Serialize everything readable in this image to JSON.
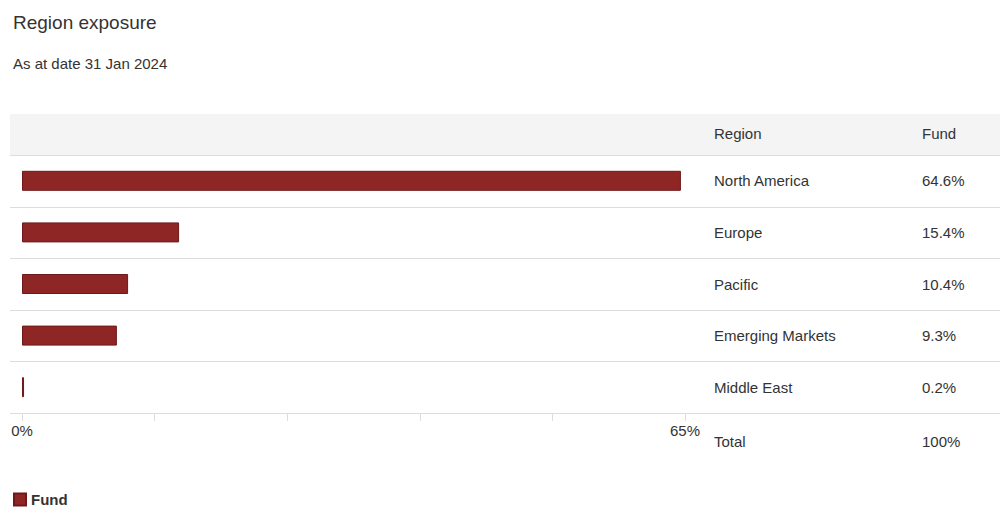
{
  "chart_data": {
    "type": "bar",
    "orientation": "horizontal",
    "title": "Region exposure",
    "subtitle": "As at date 31 Jan 2024",
    "column_headers": [
      "Region",
      "Fund"
    ],
    "categories": [
      "North America",
      "Europe",
      "Pacific",
      "Emerging Markets",
      "Middle East"
    ],
    "series": [
      {
        "name": "Fund",
        "color": "#8e2626",
        "values": [
          64.6,
          15.4,
          10.4,
          9.3,
          0.2
        ],
        "value_labels": [
          "64.6%",
          "15.4%",
          "10.4%",
          "9.3%",
          "0.2%"
        ]
      }
    ],
    "data_labels": true,
    "total": {
      "label": "Total",
      "value": "100%"
    },
    "xlim": [
      0,
      65
    ],
    "xticks": [
      {
        "value": 0,
        "label": "0%"
      },
      {
        "value": 65,
        "label": "65%"
      }
    ],
    "grid": false,
    "legend": "bottom-left"
  }
}
